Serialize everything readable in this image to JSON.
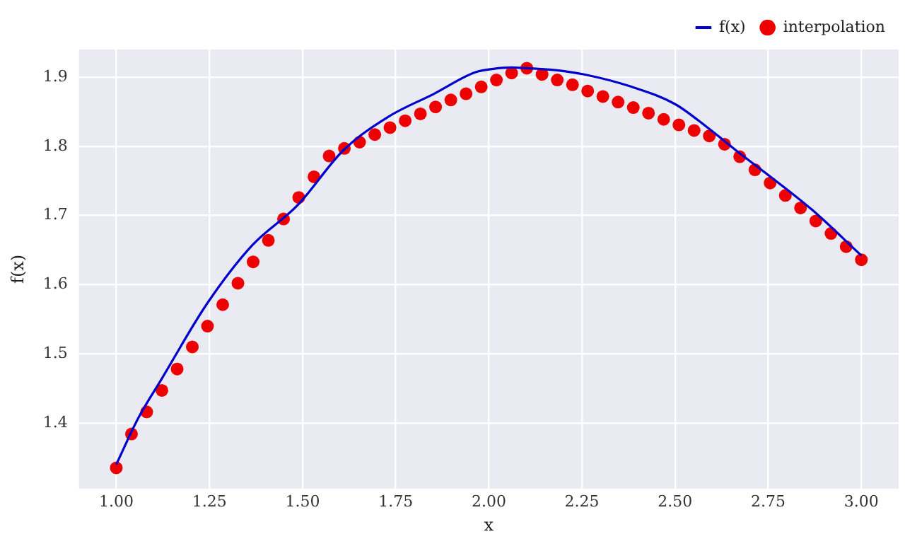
{
  "chart_data": {
    "type": "scatter",
    "xlabel": "x",
    "ylabel": "f(x)",
    "xlim": [
      0.9,
      3.1
    ],
    "ylim": [
      1.305,
      1.94
    ],
    "xticks": [
      {
        "value": 1,
        "label": "1.00"
      },
      {
        "value": 1.25,
        "label": "1.25"
      },
      {
        "value": 1.5,
        "label": "1.50"
      },
      {
        "value": 1.75,
        "label": "1.75"
      },
      {
        "value": 2,
        "label": "2.00"
      },
      {
        "value": 2.25,
        "label": "2.25"
      },
      {
        "value": 2.5,
        "label": "2.50"
      },
      {
        "value": 2.75,
        "label": "2.75"
      },
      {
        "value": 3,
        "label": "3.00"
      }
    ],
    "yticks": [
      1.4,
      1.5,
      1.6,
      1.7,
      1.8,
      1.9
    ],
    "grid": true,
    "legend": "top right",
    "series": [
      {
        "name": "f(x)",
        "type": "line",
        "color": "#0000cc",
        "marker": "none",
        "line_style": "solid",
        "x": [
          1.0,
          1.06,
          1.121,
          1.243,
          1.365,
          1.487,
          1.609,
          1.731,
          1.853,
          1.963,
          2.012,
          2.06,
          2.1,
          2.183,
          2.256,
          2.378,
          2.5,
          2.585,
          2.671,
          2.744,
          2.866,
          3.0
        ],
        "values": [
          1.34,
          1.408,
          1.463,
          1.572,
          1.657,
          1.715,
          1.794,
          1.843,
          1.876,
          1.907,
          1.912,
          1.914,
          1.913,
          1.91,
          1.904,
          1.887,
          1.861,
          1.828,
          1.791,
          1.761,
          1.709,
          1.642
        ]
      },
      {
        "name": "interpolation",
        "type": "scatter",
        "color": "#ee0000",
        "marker": "circle",
        "x": [
          1.0,
          1.0408,
          1.0816,
          1.1224,
          1.1633,
          1.2041,
          1.2449,
          1.2857,
          1.3265,
          1.3673,
          1.4082,
          1.449,
          1.4898,
          1.5306,
          1.5714,
          1.6122,
          1.6531,
          1.6939,
          1.7347,
          1.7755,
          1.8163,
          1.8571,
          1.898,
          1.9388,
          1.9796,
          2.0204,
          2.0612,
          2.102,
          2.1429,
          2.1837,
          2.2245,
          2.2653,
          2.3061,
          2.3469,
          2.3878,
          2.4286,
          2.4694,
          2.5102,
          2.551,
          2.5918,
          2.6327,
          2.6735,
          2.7143,
          2.7551,
          2.7959,
          2.8367,
          2.8776,
          2.9184,
          2.9592,
          3.0
        ],
        "values": [
          1.335,
          1.384,
          1.416,
          1.447,
          1.478,
          1.51,
          1.54,
          1.571,
          1.602,
          1.633,
          1.664,
          1.695,
          1.726,
          1.756,
          1.786,
          1.797,
          1.806,
          1.817,
          1.827,
          1.837,
          1.847,
          1.857,
          1.867,
          1.876,
          1.886,
          1.896,
          1.906,
          1.913,
          1.904,
          1.896,
          1.889,
          1.88,
          1.872,
          1.864,
          1.856,
          1.848,
          1.839,
          1.831,
          1.823,
          1.815,
          1.803,
          1.785,
          1.766,
          1.747,
          1.729,
          1.711,
          1.692,
          1.674,
          1.655,
          1.636
        ]
      }
    ]
  }
}
